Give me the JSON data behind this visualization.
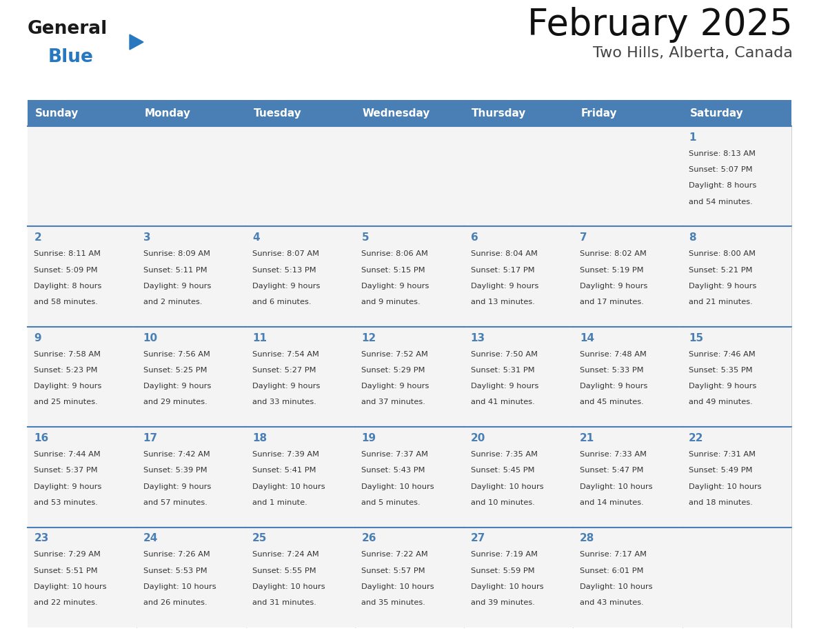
{
  "title": "February 2025",
  "subtitle": "Two Hills, Alberta, Canada",
  "days_of_week": [
    "Sunday",
    "Monday",
    "Tuesday",
    "Wednesday",
    "Thursday",
    "Friday",
    "Saturday"
  ],
  "header_bg": "#4a7fb5",
  "header_text": "#FFFFFF",
  "cell_bg": "#F4F4F4",
  "border_color": "#4a7fb5",
  "day_num_color": "#4a7fb5",
  "text_color": "#333333",
  "logo_general_color": "#1a1a1a",
  "logo_blue_color": "#2878C0",
  "calendar_data": [
    [
      {
        "day": null,
        "sunrise": null,
        "sunset": null,
        "daylight": null
      },
      {
        "day": null,
        "sunrise": null,
        "sunset": null,
        "daylight": null
      },
      {
        "day": null,
        "sunrise": null,
        "sunset": null,
        "daylight": null
      },
      {
        "day": null,
        "sunrise": null,
        "sunset": null,
        "daylight": null
      },
      {
        "day": null,
        "sunrise": null,
        "sunset": null,
        "daylight": null
      },
      {
        "day": null,
        "sunrise": null,
        "sunset": null,
        "daylight": null
      },
      {
        "day": 1,
        "sunrise": "8:13 AM",
        "sunset": "5:07 PM",
        "daylight": "8 hours\nand 54 minutes."
      }
    ],
    [
      {
        "day": 2,
        "sunrise": "8:11 AM",
        "sunset": "5:09 PM",
        "daylight": "8 hours\nand 58 minutes."
      },
      {
        "day": 3,
        "sunrise": "8:09 AM",
        "sunset": "5:11 PM",
        "daylight": "9 hours\nand 2 minutes."
      },
      {
        "day": 4,
        "sunrise": "8:07 AM",
        "sunset": "5:13 PM",
        "daylight": "9 hours\nand 6 minutes."
      },
      {
        "day": 5,
        "sunrise": "8:06 AM",
        "sunset": "5:15 PM",
        "daylight": "9 hours\nand 9 minutes."
      },
      {
        "day": 6,
        "sunrise": "8:04 AM",
        "sunset": "5:17 PM",
        "daylight": "9 hours\nand 13 minutes."
      },
      {
        "day": 7,
        "sunrise": "8:02 AM",
        "sunset": "5:19 PM",
        "daylight": "9 hours\nand 17 minutes."
      },
      {
        "day": 8,
        "sunrise": "8:00 AM",
        "sunset": "5:21 PM",
        "daylight": "9 hours\nand 21 minutes."
      }
    ],
    [
      {
        "day": 9,
        "sunrise": "7:58 AM",
        "sunset": "5:23 PM",
        "daylight": "9 hours\nand 25 minutes."
      },
      {
        "day": 10,
        "sunrise": "7:56 AM",
        "sunset": "5:25 PM",
        "daylight": "9 hours\nand 29 minutes."
      },
      {
        "day": 11,
        "sunrise": "7:54 AM",
        "sunset": "5:27 PM",
        "daylight": "9 hours\nand 33 minutes."
      },
      {
        "day": 12,
        "sunrise": "7:52 AM",
        "sunset": "5:29 PM",
        "daylight": "9 hours\nand 37 minutes."
      },
      {
        "day": 13,
        "sunrise": "7:50 AM",
        "sunset": "5:31 PM",
        "daylight": "9 hours\nand 41 minutes."
      },
      {
        "day": 14,
        "sunrise": "7:48 AM",
        "sunset": "5:33 PM",
        "daylight": "9 hours\nand 45 minutes."
      },
      {
        "day": 15,
        "sunrise": "7:46 AM",
        "sunset": "5:35 PM",
        "daylight": "9 hours\nand 49 minutes."
      }
    ],
    [
      {
        "day": 16,
        "sunrise": "7:44 AM",
        "sunset": "5:37 PM",
        "daylight": "9 hours\nand 53 minutes."
      },
      {
        "day": 17,
        "sunrise": "7:42 AM",
        "sunset": "5:39 PM",
        "daylight": "9 hours\nand 57 minutes."
      },
      {
        "day": 18,
        "sunrise": "7:39 AM",
        "sunset": "5:41 PM",
        "daylight": "10 hours\nand 1 minute."
      },
      {
        "day": 19,
        "sunrise": "7:37 AM",
        "sunset": "5:43 PM",
        "daylight": "10 hours\nand 5 minutes."
      },
      {
        "day": 20,
        "sunrise": "7:35 AM",
        "sunset": "5:45 PM",
        "daylight": "10 hours\nand 10 minutes."
      },
      {
        "day": 21,
        "sunrise": "7:33 AM",
        "sunset": "5:47 PM",
        "daylight": "10 hours\nand 14 minutes."
      },
      {
        "day": 22,
        "sunrise": "7:31 AM",
        "sunset": "5:49 PM",
        "daylight": "10 hours\nand 18 minutes."
      }
    ],
    [
      {
        "day": 23,
        "sunrise": "7:29 AM",
        "sunset": "5:51 PM",
        "daylight": "10 hours\nand 22 minutes."
      },
      {
        "day": 24,
        "sunrise": "7:26 AM",
        "sunset": "5:53 PM",
        "daylight": "10 hours\nand 26 minutes."
      },
      {
        "day": 25,
        "sunrise": "7:24 AM",
        "sunset": "5:55 PM",
        "daylight": "10 hours\nand 31 minutes."
      },
      {
        "day": 26,
        "sunrise": "7:22 AM",
        "sunset": "5:57 PM",
        "daylight": "10 hours\nand 35 minutes."
      },
      {
        "day": 27,
        "sunrise": "7:19 AM",
        "sunset": "5:59 PM",
        "daylight": "10 hours\nand 39 minutes."
      },
      {
        "day": 28,
        "sunrise": "7:17 AM",
        "sunset": "6:01 PM",
        "daylight": "10 hours\nand 43 minutes."
      },
      {
        "day": null,
        "sunrise": null,
        "sunset": null,
        "daylight": null
      }
    ]
  ]
}
